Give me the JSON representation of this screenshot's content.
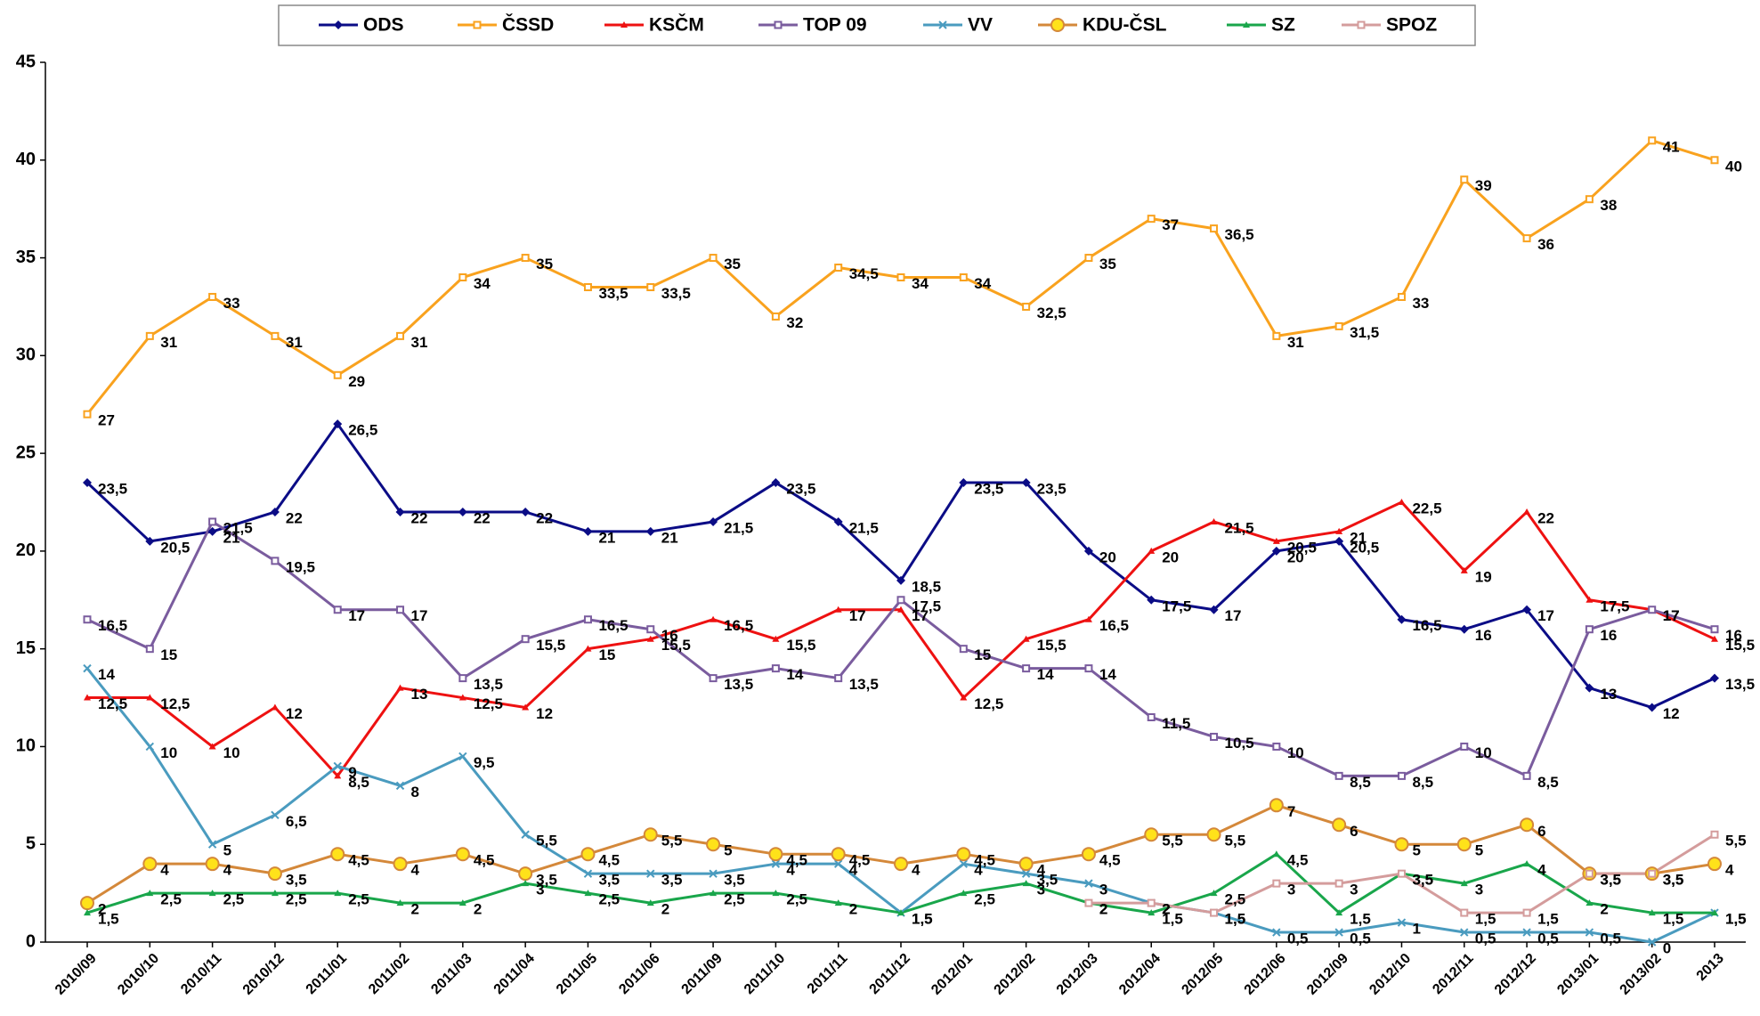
{
  "chart_data": {
    "type": "line",
    "categories": [
      "2010/09",
      "2010/10",
      "2010/11",
      "2010/12",
      "2011/01",
      "2011/02",
      "2011/03",
      "2011/04",
      "2011/05",
      "2011/06",
      "2011/09",
      "2011/10",
      "2011/11",
      "2011/12",
      "2012/01",
      "2012/02",
      "2012/03",
      "2012/04",
      "2012/05",
      "2012/06",
      "2012/09",
      "2012/10",
      "2012/11",
      "2012/12",
      "2013/01",
      "2013/02",
      "2013"
    ],
    "ylim": [
      0,
      45
    ],
    "yticks": [
      0,
      5,
      10,
      15,
      20,
      25,
      30,
      35,
      40,
      45
    ],
    "grid": false,
    "legend": "top",
    "series": [
      {
        "name": "ODS",
        "color": "#0b0c86",
        "marker": "diamond",
        "values": [
          23.5,
          20.5,
          21,
          22,
          26.5,
          22,
          22,
          22,
          21,
          21,
          21.5,
          23.5,
          21.5,
          18.5,
          23.5,
          23.5,
          20,
          17.5,
          17,
          20,
          20.5,
          16.5,
          16,
          17,
          13,
          12,
          13.5
        ],
        "value_labels": [
          "23,5",
          "20,5",
          "21",
          "22",
          "26,5",
          "22",
          "22",
          "22",
          "21",
          "21",
          "21,5",
          "23,5",
          "21,5",
          "18,5",
          "23,5",
          "23,5",
          "20",
          "17,5",
          "17",
          "20",
          "20,5",
          "16,5",
          "16",
          "17",
          "13",
          "12",
          "13,5"
        ]
      },
      {
        "name": "ČSSD",
        "color": "#f9a21e",
        "marker": "square",
        "values": [
          27,
          31,
          33,
          31,
          29,
          31,
          34,
          35,
          33.5,
          33.5,
          35,
          32,
          34.5,
          34,
          34,
          32.5,
          35,
          37,
          36.5,
          31,
          31.5,
          33,
          39,
          36,
          38,
          41,
          40
        ],
        "value_labels": [
          "27",
          "31",
          "33",
          "31",
          "29",
          "31",
          "34",
          "35",
          "33,5",
          "33,5",
          "35",
          "32",
          "34,5",
          "34",
          "34",
          "32,5",
          "35",
          "37",
          "36,5",
          "31",
          "31,5",
          "33",
          "39",
          "36",
          "38",
          "41",
          "40"
        ]
      },
      {
        "name": "KSČM",
        "color": "#ee1111",
        "marker": "triangle",
        "values": [
          12.5,
          12.5,
          10,
          12,
          8.5,
          13,
          12.5,
          12,
          15,
          15.5,
          16.5,
          15.5,
          17,
          17,
          12.5,
          15.5,
          16.5,
          20,
          21.5,
          20.5,
          21,
          22.5,
          19,
          22,
          17.5,
          17,
          15.5
        ],
        "value_labels": [
          "12,5",
          "12,5",
          "10",
          "12",
          "8,5",
          "13",
          "12,5",
          "12",
          "15",
          "15,5",
          "16,5",
          "15,5",
          "17",
          "17",
          "12,5",
          "15,5",
          "16,5",
          "20",
          "21,5",
          "20,5",
          "21",
          "22,5",
          "19",
          "22",
          "17,5",
          "17",
          "15,5"
        ]
      },
      {
        "name": "TOP 09",
        "color": "#7a5c9e",
        "marker": "square",
        "values": [
          16.5,
          15,
          21.5,
          19.5,
          17,
          17,
          13.5,
          15.5,
          16.5,
          16,
          13.5,
          14,
          13.5,
          17.5,
          15,
          14,
          14,
          11.5,
          10.5,
          10,
          8.5,
          8.5,
          10,
          8.5,
          16,
          17,
          16
        ],
        "value_labels": [
          "16,5",
          "15",
          "21,5",
          "19,5",
          "17",
          "17",
          "13,5",
          "15,5",
          "16,5",
          "16",
          "13,5",
          "14",
          "13,5",
          "17,5",
          "15",
          "14",
          "14",
          "11,5",
          "10,5",
          "10",
          "8,5",
          "8,5",
          "10",
          "8,5",
          "16",
          "17",
          "16"
        ]
      },
      {
        "name": "VV",
        "color": "#4a9bbf",
        "marker": "x",
        "values": [
          14,
          10,
          5,
          6.5,
          9,
          8,
          9.5,
          5.5,
          3.5,
          3.5,
          3.5,
          4,
          4,
          1.5,
          4,
          3.5,
          3,
          2,
          1.5,
          0.5,
          0.5,
          1,
          0.5,
          0.5,
          0.5,
          0,
          1.5
        ],
        "value_labels": [
          "14",
          "10",
          "5",
          "6,5",
          "9",
          "8",
          "9,5",
          "5,5",
          "3,5",
          "3,5",
          "3,5",
          "4",
          "4",
          "1,5",
          "4",
          "3,5",
          "3",
          "2",
          "1,5",
          "0,5",
          "0,5",
          "1",
          "0,5",
          "0,5",
          "0,5",
          "0",
          "1,5"
        ]
      },
      {
        "name": "KDU-ČSL",
        "color": "#d4883a",
        "marker": "circle",
        "values": [
          2,
          4,
          4,
          3.5,
          4.5,
          4,
          4.5,
          3.5,
          4.5,
          5.5,
          5,
          4.5,
          4.5,
          4,
          4.5,
          4,
          4.5,
          5.5,
          5.5,
          7,
          6,
          5,
          5,
          6,
          3.5,
          3.5,
          4
        ],
        "value_labels": [
          "2",
          "4",
          "4",
          "3,5",
          "4,5",
          "4",
          "4,5",
          "3,5",
          "4,5",
          "5,5",
          "5",
          "4,5",
          "4,5",
          "4",
          "4,5",
          "4",
          "4,5",
          "5,5",
          "5,5",
          "7",
          "6",
          "5",
          "5",
          "6",
          "3,5",
          "3,5",
          "4"
        ]
      },
      {
        "name": "SZ",
        "color": "#19a64b",
        "marker": "triangle",
        "values": [
          1.5,
          2.5,
          2.5,
          2.5,
          2.5,
          2,
          2,
          3,
          2.5,
          2,
          2.5,
          2.5,
          2,
          1.5,
          2.5,
          3,
          2,
          1.5,
          2.5,
          4.5,
          1.5,
          3.5,
          3,
          4,
          2,
          1.5,
          1.5
        ],
        "value_labels": [
          "1,5",
          "2,5",
          "2,5",
          "2,5",
          "2,5",
          "2",
          "2",
          "3",
          "2,5",
          "2",
          "2,5",
          "2,5",
          "2",
          "1,5",
          "2,5",
          "3",
          "2",
          "1,5",
          "2,5",
          "4,5",
          "1,5",
          "3,5",
          "3",
          "4",
          "2",
          "1,5",
          "1,5"
        ]
      },
      {
        "name": "SPOZ",
        "color": "#d49c9c",
        "marker": "square",
        "values": [
          null,
          null,
          null,
          null,
          null,
          null,
          null,
          null,
          null,
          null,
          null,
          null,
          null,
          null,
          null,
          null,
          2,
          2,
          1.5,
          3,
          3,
          3.5,
          1.5,
          1.5,
          3.5,
          3.5,
          5.5
        ],
        "value_labels": [
          null,
          null,
          null,
          null,
          null,
          null,
          null,
          null,
          null,
          null,
          null,
          null,
          null,
          null,
          null,
          null,
          "2",
          "2",
          "1,5",
          "3",
          "3",
          "3,5",
          "1,5",
          "1,5",
          "3,5",
          "3,5",
          "5,5"
        ]
      }
    ]
  }
}
